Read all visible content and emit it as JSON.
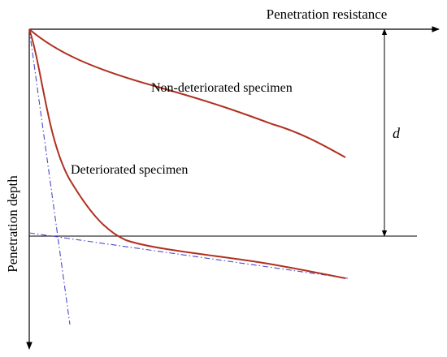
{
  "axes": {
    "x_title": "Penetration resistance",
    "y_title": "Penetration depth"
  },
  "curves": {
    "non_deteriorated_label": "Non-deteriorated specimen",
    "deteriorated_label": "Deteriorated specimen"
  },
  "dimension": {
    "symbol": "d"
  },
  "colors": {
    "curve": "#b03020",
    "tangent": "#4a4ac8",
    "axis": "#000000"
  }
}
